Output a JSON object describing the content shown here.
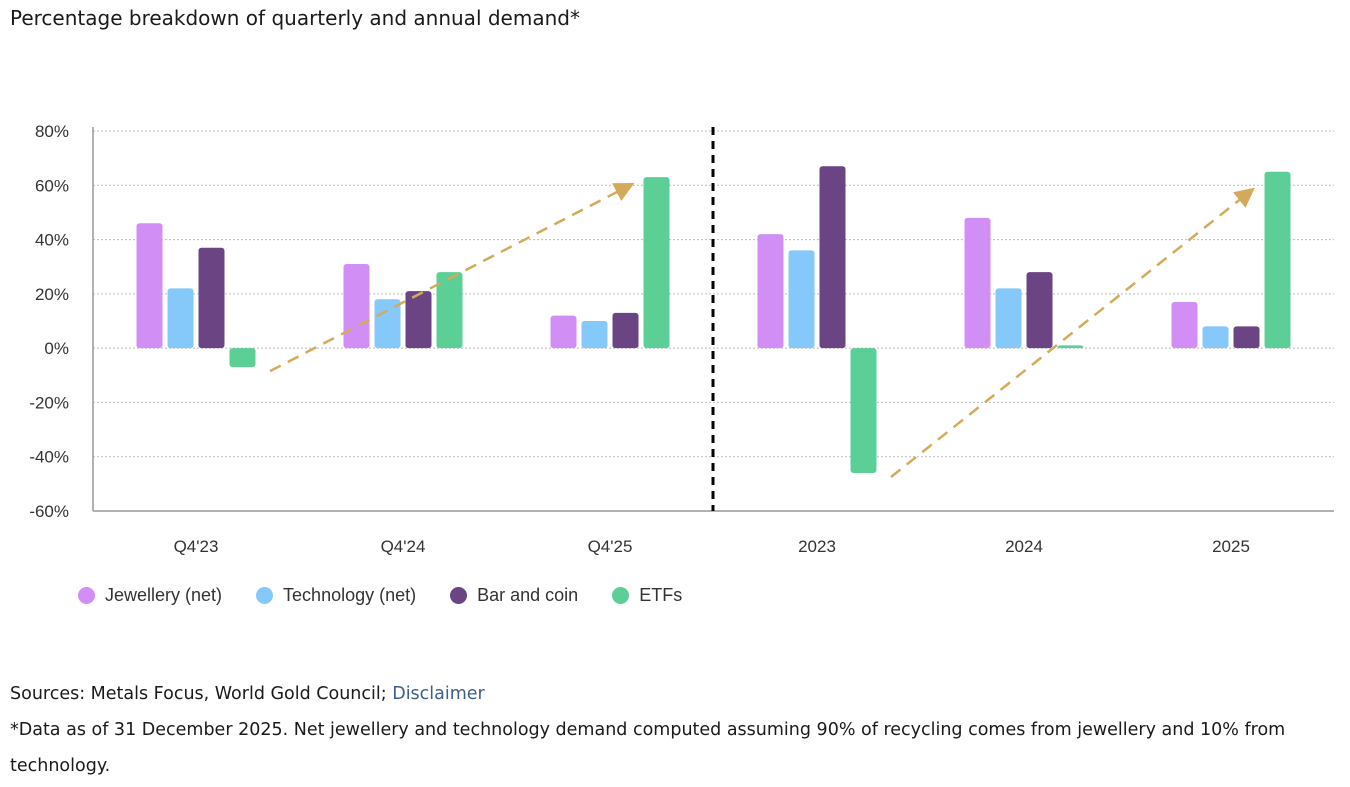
{
  "title": "Percentage breakdown of quarterly and annual demand*",
  "chart_data": {
    "type": "bar",
    "title": "Percentage breakdown of quarterly and annual demand*",
    "categories": [
      "Q4'23",
      "Q4'24",
      "Q4'25",
      "2023",
      "2024",
      "2025"
    ],
    "series": [
      {
        "name": "Jewellery (net)",
        "color": "#d18ff5",
        "values": [
          46,
          31,
          12,
          42,
          48,
          17
        ]
      },
      {
        "name": "Technology (net)",
        "color": "#85c8fa",
        "values": [
          22,
          18,
          10,
          36,
          22,
          8
        ]
      },
      {
        "name": "Bar and coin",
        "color": "#6a4483",
        "values": [
          37,
          21,
          13,
          67,
          28,
          8
        ]
      },
      {
        "name": "ETFs",
        "color": "#5ccf97",
        "values": [
          -7,
          28,
          63,
          -46,
          1,
          65
        ]
      }
    ],
    "ylim": [
      -60,
      80
    ],
    "yticks": [
      80,
      60,
      40,
      20,
      0,
      -20,
      -40,
      -60
    ],
    "ytick_labels": [
      "80%",
      "60%",
      "40%",
      "20%",
      "0%",
      "-20%",
      "-40%",
      "-60%"
    ],
    "grid": true,
    "legend": "bottom-left",
    "annotations": [
      {
        "type": "arrow",
        "from": [
          "Q4'23",
          -7
        ],
        "to": [
          "Q4'25",
          60
        ],
        "color": "#d4aa5a"
      },
      {
        "type": "arrow",
        "from": [
          "2023",
          -46
        ],
        "to": [
          "2025",
          58
        ],
        "color": "#d4aa5a"
      },
      {
        "type": "divider",
        "between": [
          "Q4'25",
          "2023"
        ]
      }
    ]
  },
  "sources_label": "Sources: Metals Focus, World Gold Council; ",
  "disclaimer_link": "Disclaimer",
  "footnote": "*Data as of 31 December 2025. Net jewellery and technology demand computed assuming 90% of recycling comes from jewellery and 10% from technology."
}
